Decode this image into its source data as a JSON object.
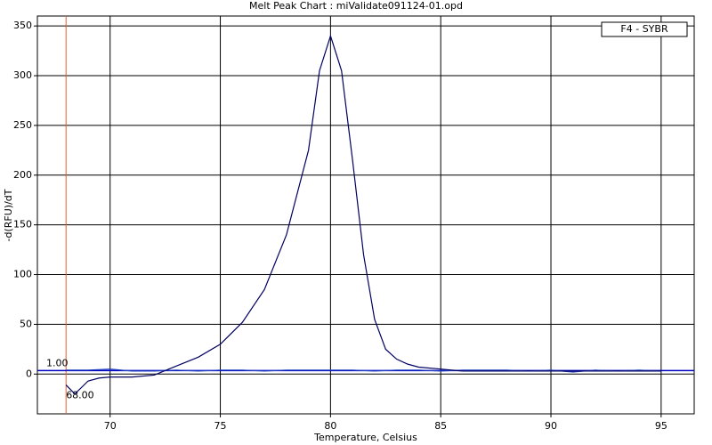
{
  "chart_data": {
    "type": "line",
    "title": "Melt Peak Chart : miValidate091124-01.opd",
    "x_label": "Temperature, Celsius",
    "y_label": "-d(RFU)/dT",
    "xlim": [
      66.7,
      96.5
    ],
    "ylim": [
      -40,
      360
    ],
    "xticks": [
      70,
      75,
      80,
      85,
      90,
      95
    ],
    "yticks": [
      0,
      50,
      100,
      150,
      200,
      250,
      300,
      350
    ],
    "grid": true,
    "legend": "top-right",
    "series": [
      {
        "name": "F4 - SYBR",
        "color": "#000060",
        "x": [
          68.0,
          68.4,
          69.0,
          69.5,
          70,
          71,
          72,
          73,
          74,
          75,
          76,
          77,
          78,
          79,
          79.5,
          80,
          80.5,
          81,
          81.5,
          82,
          82.5,
          83,
          83.5,
          84,
          85,
          86,
          90,
          95
        ],
        "values": [
          -11,
          -20,
          -7,
          -4,
          -3,
          -3,
          -1,
          8,
          17,
          30,
          52,
          85,
          140,
          225,
          305,
          340,
          305,
          215,
          120,
          55,
          25,
          15,
          10,
          7,
          5,
          3,
          3,
          3
        ]
      }
    ],
    "baseline": {
      "color": "#2040c0",
      "x": [
        68,
        69,
        70,
        71,
        72,
        73,
        74,
        75,
        76,
        77,
        78,
        79,
        80,
        81,
        82,
        83,
        84,
        85,
        86,
        87,
        88,
        89,
        90,
        91,
        92,
        93,
        94,
        95
      ],
      "values": [
        4,
        4,
        5,
        3,
        3,
        4,
        3,
        4,
        4,
        3,
        4,
        4,
        4,
        4,
        3,
        4,
        4,
        3,
        4,
        4,
        4,
        3,
        4,
        2,
        4,
        3,
        4,
        3
      ]
    },
    "threshold": 3.5,
    "threshold_label": "1.00",
    "threshold_color": "#0000c0",
    "marker_x": {
      "value": 68,
      "label": "68.00"
    },
    "marker_color": "#e06030"
  }
}
